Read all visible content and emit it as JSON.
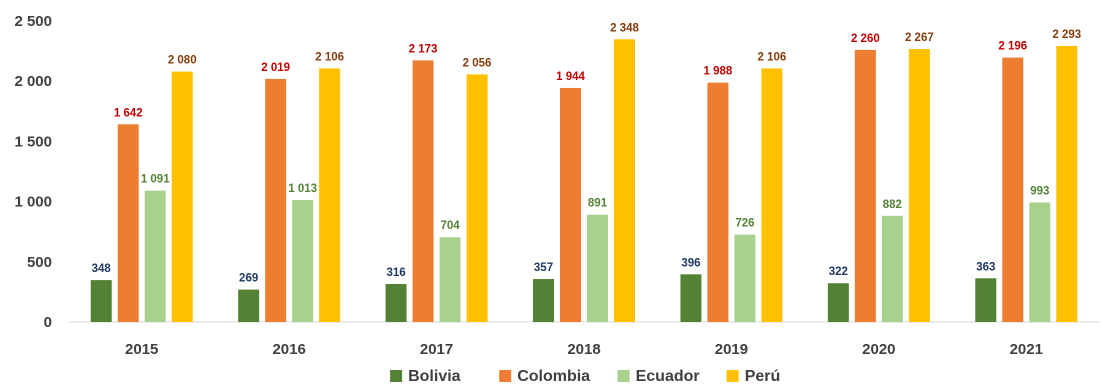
{
  "chart_data": {
    "type": "bar",
    "title": "",
    "xlabel": "",
    "ylabel": "",
    "categories": [
      "2015",
      "2016",
      "2017",
      "2018",
      "2019",
      "2020",
      "2021"
    ],
    "ylim": [
      0,
      2500
    ],
    "yticks": [
      0,
      500,
      1000,
      1500,
      2000,
      2500
    ],
    "ytick_labels": [
      "0",
      "500",
      "1 000",
      "1 500",
      "2 000",
      "2 500"
    ],
    "grid": false,
    "legend_position": "bottom",
    "series": [
      {
        "name": "Bolivia",
        "color": "#548235",
        "label_color": "#1f3864",
        "values": [
          348,
          269,
          316,
          357,
          396,
          322,
          363
        ],
        "labels": [
          "348",
          "269",
          "316",
          "357",
          "396",
          "322",
          "363"
        ]
      },
      {
        "name": "Colombia",
        "color": "#ed7d31",
        "label_color": "#c00000",
        "values": [
          1642,
          2019,
          2173,
          1944,
          1988,
          2260,
          2196
        ],
        "labels": [
          "1 642",
          "2 019",
          "2 173",
          "1 944",
          "1 988",
          "2 260",
          "2 196"
        ]
      },
      {
        "name": "Ecuador",
        "color": "#a9d18e",
        "label_color": "#548235",
        "values": [
          1091,
          1013,
          704,
          891,
          726,
          882,
          993
        ],
        "labels": [
          "1 091",
          "1 013",
          "704",
          "891",
          "726",
          "882",
          "993"
        ]
      },
      {
        "name": "Perú",
        "color": "#ffc000",
        "label_color": "#843c0c",
        "values": [
          2080,
          2106,
          2056,
          2348,
          2106,
          2267,
          2293
        ],
        "labels": [
          "2 080",
          "2 106",
          "2 056",
          "2 348",
          "2 106",
          "2 267",
          "2 293"
        ]
      }
    ]
  }
}
